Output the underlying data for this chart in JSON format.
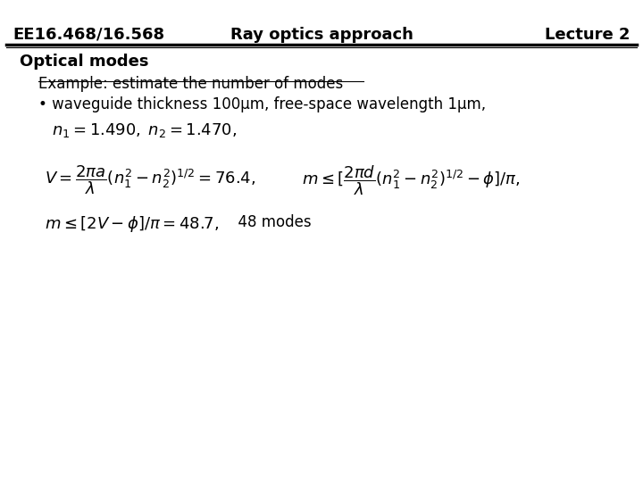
{
  "header_left": "EE16.468/16.568",
  "header_center": "Ray optics approach",
  "header_right": "Lecture 2",
  "section_title": "Optical modes",
  "example_title": "Example: estimate the number of modes",
  "bullet_text": "• waveguide thickness 100μm, free-space wavelength 1μm,",
  "line1_latex": "$n_1 = 1.490, \\; n_2 = 1.470,$",
  "line2a_latex": "$V = \\dfrac{2\\pi a}{\\lambda}(n_1^2 - n_2^2)^{1/2} = 76.4,$",
  "line2b_latex": "$m \\leq [\\dfrac{2\\pi d}{\\lambda}(n_1^2 - n_2^2)^{1/2} - \\phi]/\\pi,$",
  "line3_latex_part1": "$m \\leq [2V - \\phi]/\\pi = 48.7,$",
  "line3_text_part2": "  48 modes",
  "bg_color": "#ffffff",
  "text_color": "#000000",
  "header_fontsize": 13,
  "section_fontsize": 13,
  "body_fontsize": 12,
  "math_fontsize": 13
}
